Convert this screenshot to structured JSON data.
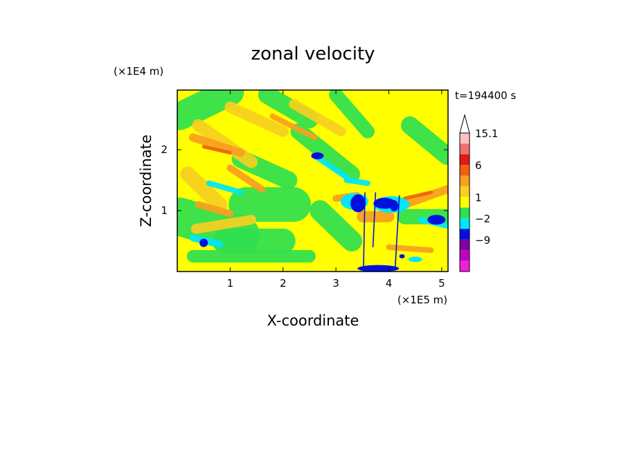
{
  "chart_data": {
    "type": "heatmap",
    "title": "zonal velocity",
    "xlabel": "X-coordinate",
    "ylabel": "Z-coordinate",
    "x_unit": "(×1E5 m)",
    "y_unit": "(×1E4 m)",
    "time_label": "t=194400 s",
    "xlim": [
      0,
      5.12
    ],
    "ylim": [
      0,
      2.98
    ],
    "x_ticks": [
      1,
      2,
      3,
      4,
      5
    ],
    "y_ticks": [
      1,
      2
    ],
    "colorbar": {
      "levels": [
        15.1,
        6,
        1,
        -2,
        -9
      ],
      "level_labels": [
        "15.1",
        "6",
        "1",
        "−2",
        "−9"
      ],
      "colors": [
        "#ffc0c0",
        "#f07070",
        "#e01818",
        "#f06010",
        "#f8a020",
        "#f8d020",
        "#ffff00",
        "#30e050",
        "#00e8f8",
        "#0010e0",
        "#8000a0",
        "#c000c0",
        "#f020e0"
      ],
      "extend_max": true
    },
    "palette": {
      "green": "#30e050",
      "yellow": "#ffff00",
      "light_orange": "#f8d020",
      "orange": "#f8a020",
      "dark_orange": "#f06010",
      "cyan": "#00e8f8",
      "blue": "#0010e0"
    }
  }
}
